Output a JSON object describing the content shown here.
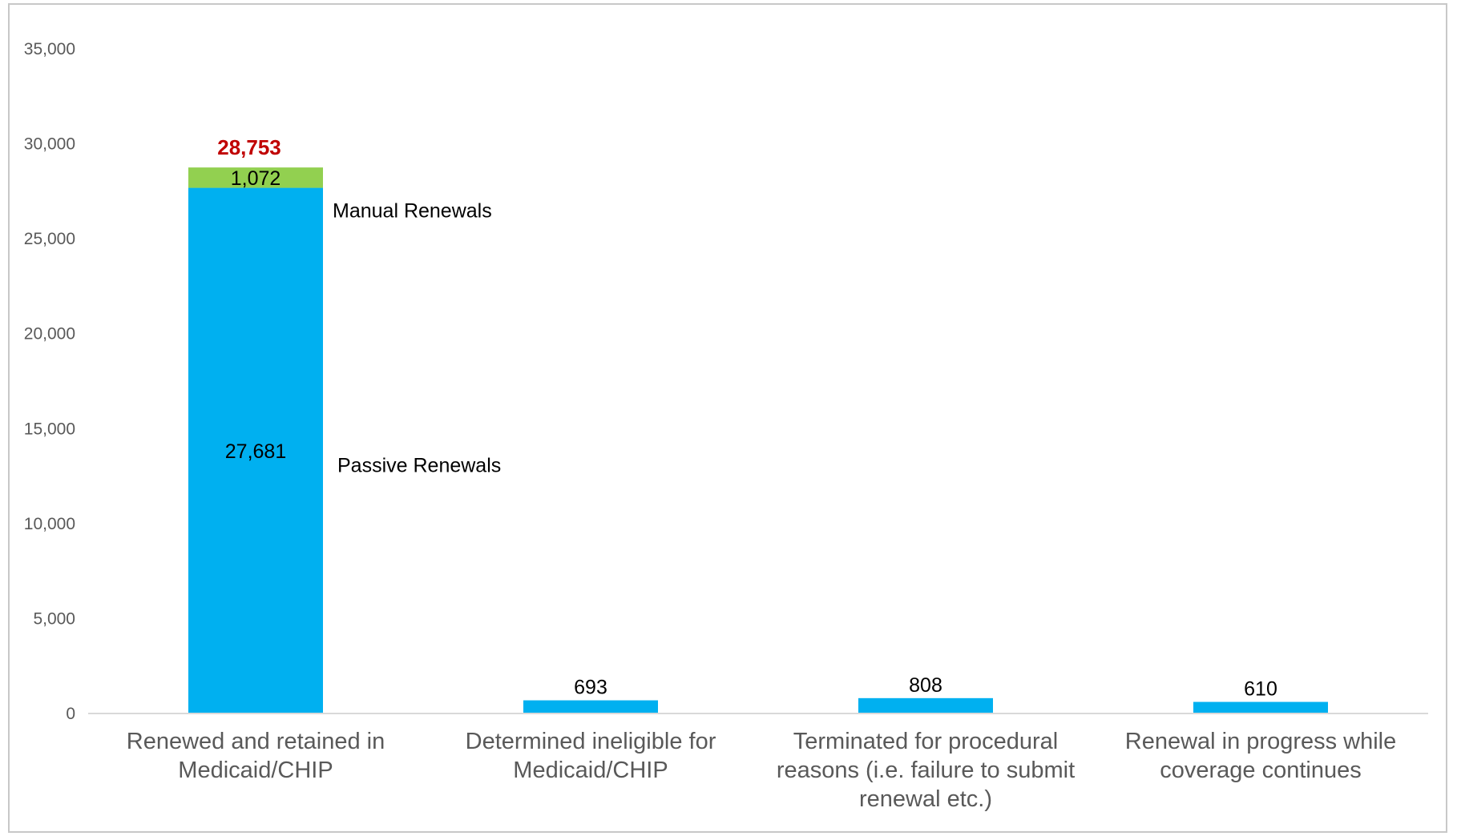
{
  "chart_data": {
    "type": "bar",
    "stacked": true,
    "title": "",
    "xlabel": "",
    "ylabel": "",
    "ylim": [
      0,
      35000
    ],
    "yticks": [
      0,
      5000,
      10000,
      15000,
      20000,
      25000,
      30000,
      35000
    ],
    "ytick_labels": [
      "0",
      "5,000",
      "10,000",
      "15,000",
      "20,000",
      "25,000",
      "30,000",
      "35,000"
    ],
    "grid": false,
    "legend": "none",
    "categories": [
      [
        "Renewed and retained in",
        "Medicaid/CHIP"
      ],
      [
        "Determined ineligible for",
        "Medicaid/CHIP"
      ],
      [
        "Terminated for procedural",
        "reasons (i.e. failure to submit",
        "renewal etc.)"
      ],
      [
        "Renewal in progress while",
        "coverage continues"
      ]
    ],
    "series": [
      {
        "color": "#00b0f0",
        "values": [
          27681,
          693,
          808,
          610
        ],
        "labels": [
          "27,681",
          "693",
          "808",
          "610"
        ]
      },
      {
        "color": "#92d050",
        "values": [
          1072,
          null,
          null,
          null
        ],
        "labels": [
          "1,072",
          null,
          null,
          null
        ]
      }
    ],
    "totals": [
      {
        "index": 0,
        "value": 28753,
        "label": "28,753",
        "color": "#c00000"
      }
    ],
    "annotations": [
      {
        "text": "Manual Renewals",
        "category": 0,
        "at_value": 26500
      },
      {
        "text": "Passive Renewals",
        "category": 0,
        "at_value": 13100
      }
    ]
  },
  "colors": {
    "axis": "#d9d9d9",
    "tick_text": "#595959",
    "frame": "#c8c8c8"
  }
}
